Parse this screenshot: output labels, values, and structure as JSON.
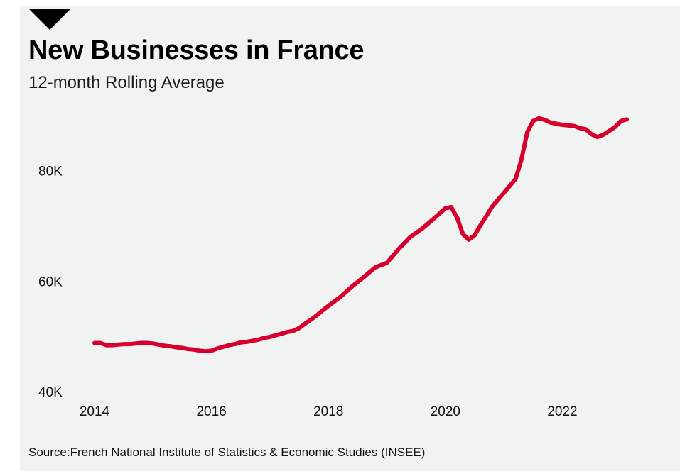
{
  "title": "New Businesses in France",
  "subtitle": "12-month Rolling Average",
  "source": "Source:French National Institute of Statistics & Economic Studies (INSEE)",
  "colors": {
    "line": "#d7002d",
    "panel": "#f0f3f2",
    "text": "#111111"
  },
  "chart_data": {
    "type": "line",
    "title": "New Businesses in France",
    "subtitle": "12-month Rolling Average",
    "xlabel": "",
    "ylabel": "",
    "x_ticks": [
      "2014",
      "2016",
      "2018",
      "2020",
      "2022"
    ],
    "y_ticks": [
      "40K",
      "60K",
      "80K"
    ],
    "xlim": [
      2014,
      2023.1
    ],
    "ylim": [
      40000,
      91000
    ],
    "grid": false,
    "legend": "none",
    "series": [
      {
        "x": [
          2014.0,
          2014.1,
          2014.2,
          2014.3,
          2014.4,
          2014.5,
          2014.6,
          2014.7,
          2014.8,
          2014.9,
          2015.0,
          2015.1,
          2015.2,
          2015.3,
          2015.4,
          2015.5,
          2015.6,
          2015.7,
          2015.8,
          2015.9,
          2016.0,
          2016.1,
          2016.2,
          2016.3,
          2016.4,
          2016.5,
          2016.6,
          2016.7,
          2016.8,
          2016.9,
          2017.0,
          2017.1,
          2017.2,
          2017.3,
          2017.4,
          2017.5,
          2017.6,
          2017.7,
          2017.8,
          2017.9,
          2018.0,
          2018.2,
          2018.4,
          2018.6,
          2018.8,
          2019.0,
          2019.2,
          2019.4,
          2019.6,
          2019.8,
          2020.0,
          2020.1,
          2020.2,
          2020.3,
          2020.4,
          2020.5,
          2020.6,
          2020.8,
          2021.0,
          2021.2,
          2021.3,
          2021.4,
          2021.5,
          2021.6,
          2021.7,
          2021.8,
          2021.9,
          2022.0,
          2022.2,
          2022.3,
          2022.4,
          2022.5,
          2022.6,
          2022.7,
          2022.8,
          2022.9,
          2023.0,
          2023.1
        ],
        "values": [
          48800,
          48800,
          48400,
          48400,
          48500,
          48600,
          48600,
          48700,
          48800,
          48800,
          48700,
          48500,
          48300,
          48200,
          48000,
          47900,
          47700,
          47600,
          47400,
          47300,
          47400,
          47800,
          48100,
          48400,
          48600,
          48900,
          49000,
          49200,
          49400,
          49700,
          49900,
          50200,
          50500,
          50800,
          51000,
          51500,
          52300,
          53000,
          53800,
          54700,
          55500,
          57100,
          59000,
          60700,
          62500,
          63300,
          65800,
          68000,
          69500,
          71300,
          73200,
          73400,
          71500,
          68500,
          67500,
          68300,
          70100,
          73500,
          76000,
          78500,
          82000,
          87000,
          89000,
          89500,
          89200,
          88700,
          88500,
          88300,
          88100,
          87700,
          87500,
          86600,
          86100,
          86500,
          87200,
          87900,
          89000,
          89300
        ]
      }
    ]
  }
}
